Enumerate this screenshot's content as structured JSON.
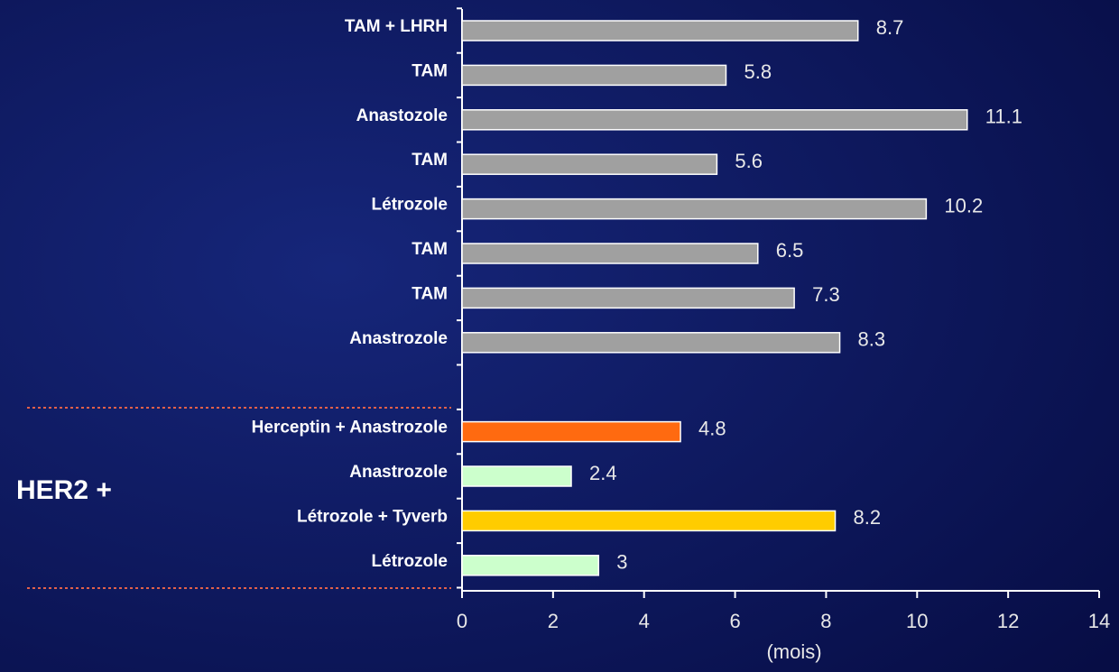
{
  "chart_data": {
    "type": "hbar",
    "categories": [
      "TAM + LHRH",
      "TAM",
      "Anastozole",
      "TAM",
      "Létrozole",
      "TAM",
      "TAM",
      "Anastrozole",
      null,
      "Herceptin + Anastrozole",
      "Anastrozole",
      "Létrozole + Tyverb",
      "Létrozole"
    ],
    "values": [
      8.7,
      5.8,
      11.1,
      5.6,
      10.2,
      6.5,
      7.3,
      8.3,
      null,
      4.8,
      2.4,
      8.2,
      3
    ],
    "colors": [
      "#a0a0a0",
      "#a0a0a0",
      "#a0a0a0",
      "#a0a0a0",
      "#a0a0a0",
      "#a0a0a0",
      "#a0a0a0",
      "#a0a0a0",
      null,
      "#ff6a10",
      "#ccffcc",
      "#ffcc00",
      "#ccffcc"
    ],
    "xlim": [
      0,
      14
    ],
    "xticks": [
      0,
      2,
      4,
      6,
      8,
      10,
      12,
      14
    ],
    "xlabel": "(mois)",
    "annotation": "HER2 +"
  }
}
